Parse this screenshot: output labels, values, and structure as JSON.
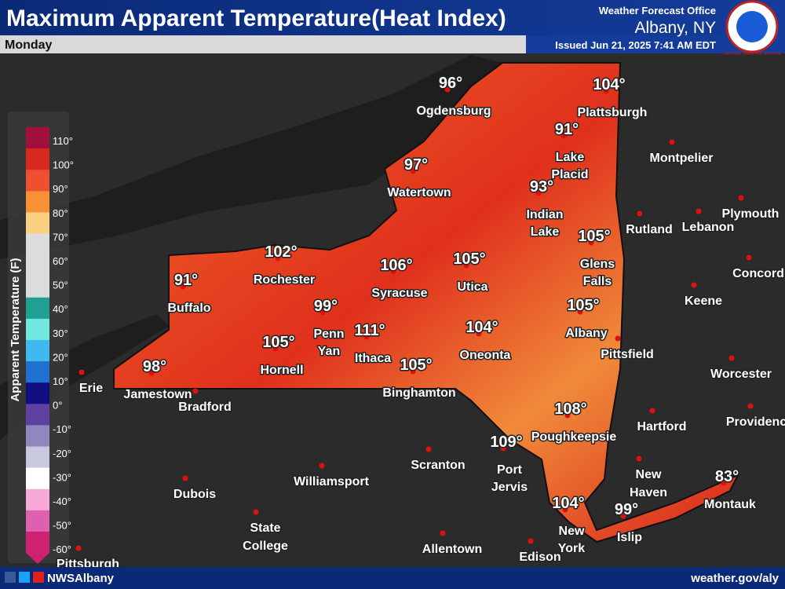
{
  "header": {
    "title": "Maximum Apparent Temperature(Heat Index)",
    "day": "Monday",
    "office_label": "Weather Forecast Office",
    "office": "Albany, NY",
    "issued": "Issued Jun 21, 2025 7:41 AM EDT",
    "logo_text": "NATIONAL WEATHER SERVICE"
  },
  "legend": {
    "title": "Apparent Temperature (F)",
    "ticks": [
      "110°",
      "100°",
      "90°",
      "80°",
      "70°",
      "60°",
      "50°",
      "40°",
      "30°",
      "20°",
      "10°",
      "0°",
      "-10°",
      "-20°",
      "-30°",
      "-40°",
      "-50°",
      "-60°"
    ]
  },
  "cities": [
    {
      "temp": "96°",
      "name": [
        "Ogdensburg"
      ]
    },
    {
      "temp": "104°",
      "name": [
        "Plattsburgh"
      ]
    },
    {
      "temp": "91°",
      "name": [
        "Lake",
        "Placid"
      ]
    },
    {
      "temp": "97°",
      "name": [
        "Watertown"
      ]
    },
    {
      "temp": "93°",
      "name": [
        "Indian",
        "Lake"
      ]
    },
    {
      "temp": "105°",
      "name": [
        "Glens",
        "Falls"
      ]
    },
    {
      "temp": "102°",
      "name": [
        "Rochester"
      ]
    },
    {
      "temp": "106°",
      "name": [
        "Syracuse"
      ]
    },
    {
      "temp": "105°",
      "name": [
        "Utica"
      ]
    },
    {
      "temp": "91°",
      "name": [
        "Buffalo"
      ]
    },
    {
      "temp": "99°",
      "name": [
        "Penn",
        "Yan"
      ]
    },
    {
      "temp": "105°",
      "name": [
        "Albany"
      ]
    },
    {
      "temp": "111°",
      "name": [
        "Ithaca"
      ]
    },
    {
      "temp": "104°",
      "name": [
        "Oneonta"
      ]
    },
    {
      "temp": "105°",
      "name": [
        "Hornell"
      ]
    },
    {
      "temp": "105°",
      "name": [
        "Binghamton"
      ]
    },
    {
      "temp": "98°",
      "name": [
        "Jamestown"
      ]
    },
    {
      "temp": "108°",
      "name": [
        "Poughkeepsie"
      ]
    },
    {
      "temp": "109°",
      "name": [
        "Port",
        "Jervis"
      ]
    },
    {
      "temp": "104°",
      "name": [
        "New",
        "York"
      ]
    },
    {
      "temp": "99°",
      "name": [
        "Islip"
      ]
    },
    {
      "temp": "83°",
      "name": [
        "Montauk"
      ]
    }
  ],
  "other_cities": [
    [
      "Montpelier"
    ],
    [
      "Plymouth"
    ],
    [
      "Rutland"
    ],
    [
      "Lebanon"
    ],
    [
      "Concord"
    ],
    [
      "Keene"
    ],
    [
      "Pittsfield"
    ],
    [
      "Worcester"
    ],
    [
      "Hartford"
    ],
    [
      "Providence"
    ],
    [
      "New",
      "Haven"
    ],
    [
      "Erie"
    ],
    [
      "Bradford"
    ],
    [
      "Scranton"
    ],
    [
      "Williamsport"
    ],
    [
      "Dubois"
    ],
    [
      "State",
      "College"
    ],
    [
      "Allentown"
    ],
    [
      "Edison"
    ],
    [
      "Pittsburgh"
    ]
  ],
  "footer": {
    "handle": "NWSAlbany",
    "url": "weather.gov/aly"
  }
}
